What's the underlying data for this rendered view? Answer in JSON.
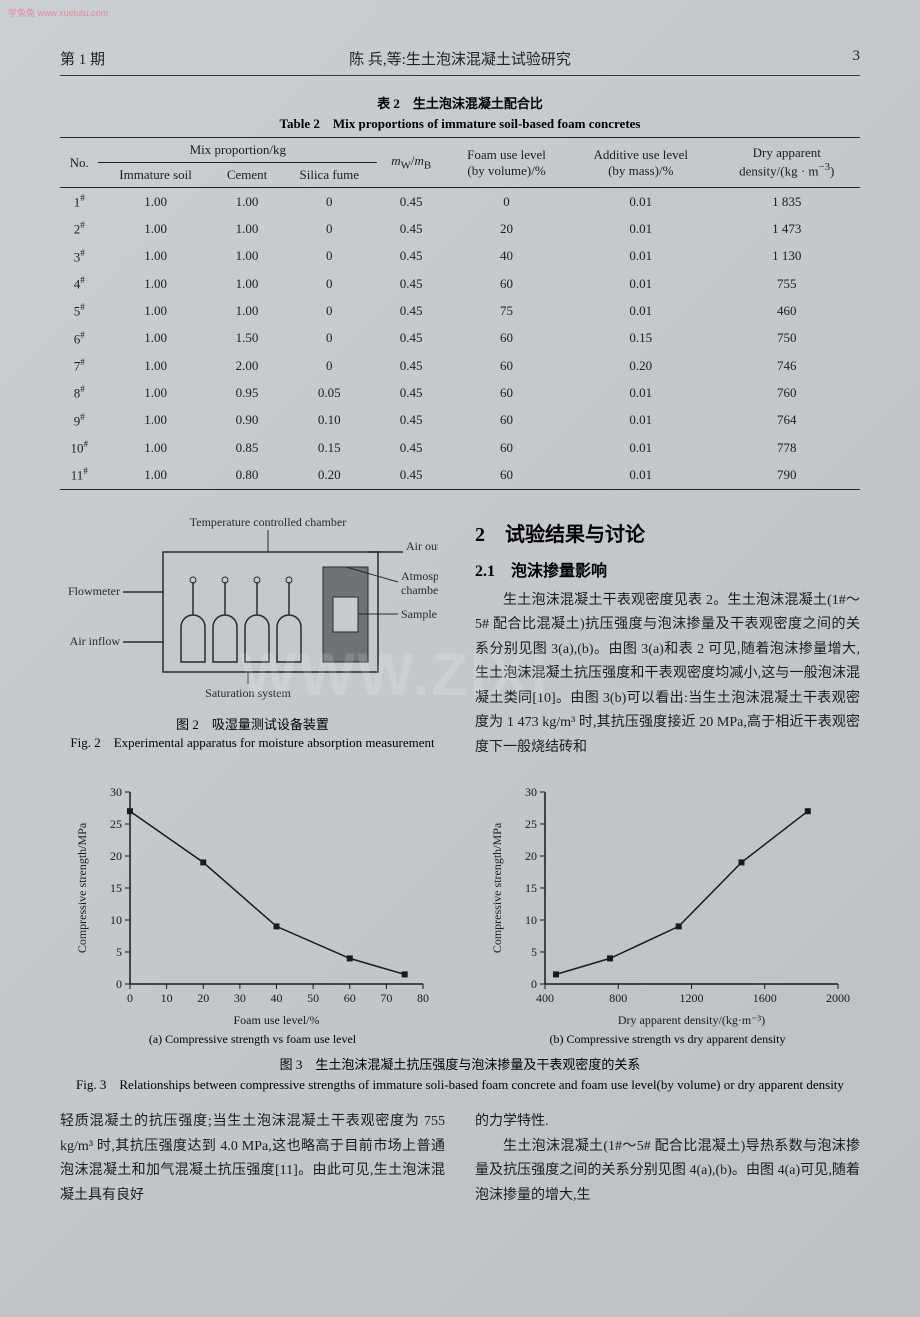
{
  "watermark_small": "学兔兔 www.xuetutu.com",
  "watermark_big": "WWW.ZIXI",
  "header": {
    "issue": "第 1 期",
    "running_title": "陈 兵,等:生土泡沫混凝土试验研究",
    "page_number": "3"
  },
  "table2": {
    "caption_cn": "表 2　生土泡沫混凝土配合比",
    "caption_en": "Table 2　Mix proportions of immature soil-based foam concretes",
    "head": {
      "no": "No.",
      "mix_group": "Mix proportion/kg",
      "immature": "Immature soil",
      "cement": "Cement",
      "silica": "Silica fume",
      "mw_mb": "m_W/m_B",
      "foam": "Foam use level\n(by volume)/%",
      "additive": "Additive use level\n(by mass)/%",
      "density": "Dry apparent\ndensity/(kg · m⁻³)"
    },
    "rows": [
      {
        "no": "1#",
        "soil": "1.00",
        "cement": "1.00",
        "sf": "0",
        "mw": "0.45",
        "foam": "0",
        "add": "0.01",
        "dens": "1 835"
      },
      {
        "no": "2#",
        "soil": "1.00",
        "cement": "1.00",
        "sf": "0",
        "mw": "0.45",
        "foam": "20",
        "add": "0.01",
        "dens": "1 473"
      },
      {
        "no": "3#",
        "soil": "1.00",
        "cement": "1.00",
        "sf": "0",
        "mw": "0.45",
        "foam": "40",
        "add": "0.01",
        "dens": "1 130"
      },
      {
        "no": "4#",
        "soil": "1.00",
        "cement": "1.00",
        "sf": "0",
        "mw": "0.45",
        "foam": "60",
        "add": "0.01",
        "dens": "755"
      },
      {
        "no": "5#",
        "soil": "1.00",
        "cement": "1.00",
        "sf": "0",
        "mw": "0.45",
        "foam": "75",
        "add": "0.01",
        "dens": "460"
      },
      {
        "no": "6#",
        "soil": "1.00",
        "cement": "1.50",
        "sf": "0",
        "mw": "0.45",
        "foam": "60",
        "add": "0.15",
        "dens": "750"
      },
      {
        "no": "7#",
        "soil": "1.00",
        "cement": "2.00",
        "sf": "0",
        "mw": "0.45",
        "foam": "60",
        "add": "0.20",
        "dens": "746"
      },
      {
        "no": "8#",
        "soil": "1.00",
        "cement": "0.95",
        "sf": "0.05",
        "mw": "0.45",
        "foam": "60",
        "add": "0.01",
        "dens": "760"
      },
      {
        "no": "9#",
        "soil": "1.00",
        "cement": "0.90",
        "sf": "0.10",
        "mw": "0.45",
        "foam": "60",
        "add": "0.01",
        "dens": "764"
      },
      {
        "no": "10#",
        "soil": "1.00",
        "cement": "0.85",
        "sf": "0.15",
        "mw": "0.45",
        "foam": "60",
        "add": "0.01",
        "dens": "778"
      },
      {
        "no": "11#",
        "soil": "1.00",
        "cement": "0.80",
        "sf": "0.20",
        "mw": "0.45",
        "foam": "60",
        "add": "0.01",
        "dens": "790"
      }
    ]
  },
  "fig2": {
    "labels": {
      "tcc": "Temperature controlled chamber",
      "outflow": "Air outflow",
      "atm": "Atmospheric\nchamber",
      "flow": "Flowmeter",
      "inflow": "Air inflow",
      "sample": "Sample",
      "sat": "Saturation system"
    },
    "caption_cn": "图 2　吸湿量测试设备装置",
    "caption_en": "Fig. 2　Experimental apparatus for moisture absorption measurement",
    "stroke": "#2a2a2a",
    "fill_dark": "#6e7377",
    "fill_light": "#c5cbce"
  },
  "section2": {
    "title": "2　试验结果与讨论",
    "sub21": "2.1　泡沫掺量影响",
    "para1": "生土泡沫混凝土干表观密度见表 2。生土泡沫混凝土(1#～5# 配合比混凝土)抗压强度与泡沫掺量及干表观密度之间的关系分别见图 3(a),(b)。由图 3(a)和表 2 可见,随着泡沫掺量增大,生土泡沫混凝土抗压强度和干表观密度均减小,这与一般泡沫混凝土类同[10]。由图 3(b)可以看出:当生土泡沫混凝土干表观密度为 1 473 kg/m³ 时,其抗压强度接近 20 MPa,高于相近干表观密度下一般烧结砖和"
  },
  "fig3": {
    "chart_a": {
      "type": "line",
      "x": [
        0,
        20,
        40,
        60,
        75
      ],
      "y": [
        27,
        19,
        9,
        4,
        1.5
      ],
      "xlim": [
        0,
        80
      ],
      "ylim": [
        0,
        30
      ],
      "xticks": [
        0,
        10,
        20,
        30,
        40,
        50,
        60,
        70,
        80
      ],
      "yticks": [
        0,
        5,
        10,
        15,
        20,
        25,
        30
      ],
      "xlabel": "Foam use level/%",
      "ylabel": "Compressive strength/MPa",
      "marker": "square",
      "marker_size": 5,
      "line_color": "#1a1a1a",
      "line_width": 1.5,
      "axis_color": "#1a1a1a",
      "font_size": 12,
      "sub_caption": "(a) Compressive strength vs foam use level"
    },
    "chart_b": {
      "type": "line",
      "x": [
        460,
        755,
        1130,
        1473,
        1835
      ],
      "y": [
        1.5,
        4,
        9,
        19,
        27
      ],
      "xlim": [
        400,
        2000
      ],
      "ylim": [
        0,
        30
      ],
      "xticks": [
        400,
        800,
        1200,
        1600,
        2000
      ],
      "yticks": [
        0,
        5,
        10,
        15,
        20,
        25,
        30
      ],
      "xlabel": "Dry apparent density/(kg·m⁻³)",
      "ylabel": "Compressive strength/MPa",
      "marker": "square",
      "marker_size": 5,
      "line_color": "#1a1a1a",
      "line_width": 1.5,
      "axis_color": "#1a1a1a",
      "font_size": 12,
      "sub_caption": "(b) Compressive strength vs dry apparent density"
    },
    "caption_cn": "图 3　生土泡沫混凝土抗压强度与泡沫掺量及干表观密度的关系",
    "caption_en": "Fig. 3　Relationships between compressive strengths of immature soli-based foam concrete and foam use level(by volume) or dry apparent density"
  },
  "bottom": {
    "left": "轻质混凝土的抗压强度;当生土泡沫混凝土干表观密度为 755 kg/m³ 时,其抗压强度达到 4.0 MPa,这也略高于目前市场上普通泡沫混凝土和加气混凝土抗压强度[11]。由此可见,生土泡沫混凝土具有良好",
    "right_1": "的力学特性.",
    "right_2": "生土泡沫混凝土(1#～5# 配合比混凝土)导热系数与泡沫掺量及抗压强度之间的关系分别见图 4(a),(b)。由图 4(a)可见,随着泡沫掺量的增大,生"
  }
}
